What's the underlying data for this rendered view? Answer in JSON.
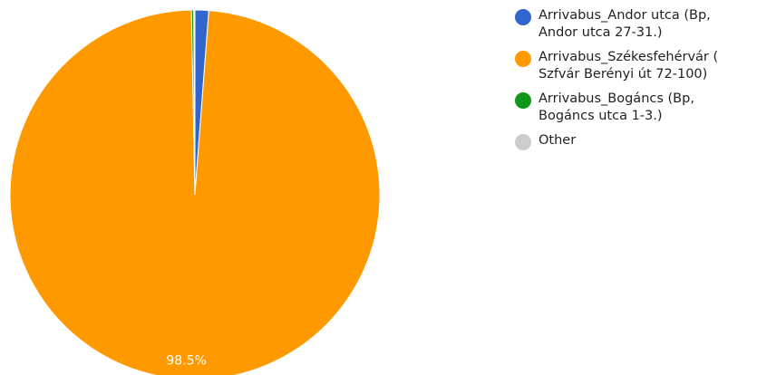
{
  "chart_data": {
    "type": "pie",
    "slices": [
      {
        "name": "Arrivabus_Andor utca (Bp, Andor utca 27-31.)",
        "value": 1.2,
        "color": "#3366cc"
      },
      {
        "name": "Arrivabus_Székesfehérvár (Szfvár Berényi út 72-100)",
        "value": 98.5,
        "color": "#ff9900"
      },
      {
        "name": "Arrivabus_Bogáncs (Bp, Bogáncs utca 1-3.)",
        "value": 0.2,
        "color": "#109618"
      },
      {
        "name": "Other",
        "value": 0.1,
        "color": "#cccccc"
      }
    ],
    "data_labels": [
      "",
      "98.5%",
      "",
      ""
    ],
    "legend_position": "right"
  },
  "legend": {
    "items": [
      {
        "lines": [
          "Arrivabus_Andor utca (Bp,",
          "Andor utca 27-31.)"
        ],
        "color": "#3366cc"
      },
      {
        "lines": [
          "Arrivabus_Székesfehérvár (",
          "Szfvár Berényi út 72-100)"
        ],
        "color": "#ff9900"
      },
      {
        "lines": [
          "Arrivabus_Bogáncs (Bp,",
          "Bogáncs utca 1-3.)"
        ],
        "color": "#109618"
      },
      {
        "lines": [
          "Other"
        ],
        "color": "#cccccc"
      }
    ]
  }
}
